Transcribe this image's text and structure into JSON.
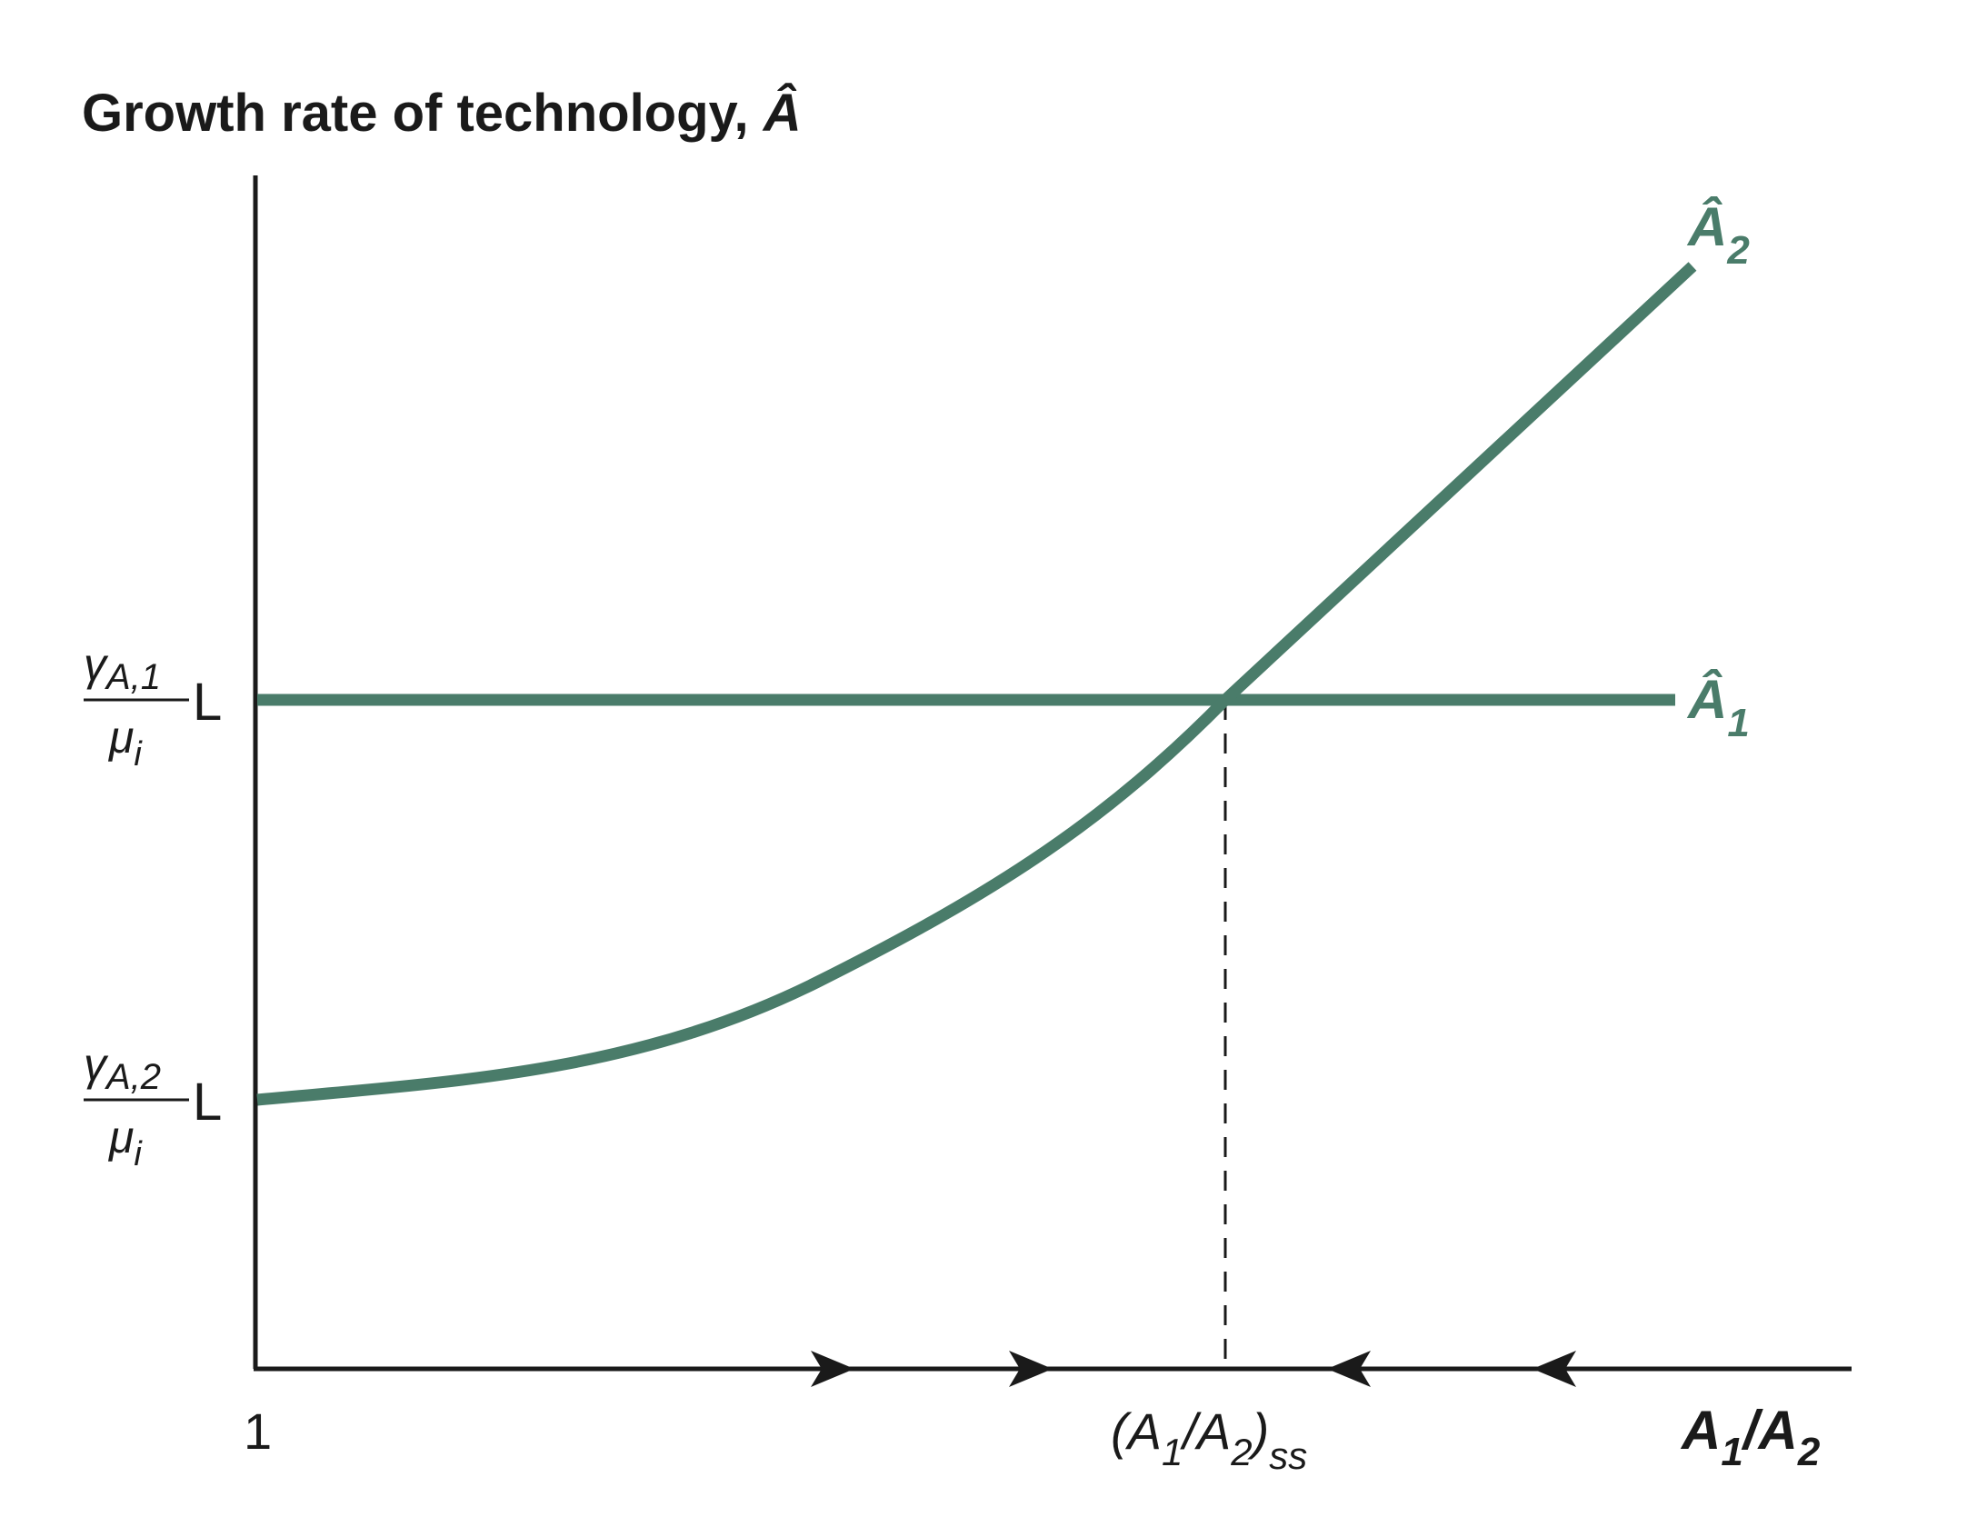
{
  "chart_data": {
    "type": "line",
    "title": "Growth rate of technology, Â",
    "title_parts": {
      "text": "Growth rate of technology, ",
      "symbol": "Â"
    },
    "xlabel": {
      "base1": "A",
      "sub1": "1",
      "slash": "/",
      "base2": "A",
      "sub2": "2"
    },
    "grid": false,
    "x_ticks": {
      "origin": "1",
      "steady_state": {
        "open": "(A",
        "sub1": "1",
        "slash": "/A",
        "sub2": "2",
        "close": ")",
        "sub_ss": "ss"
      }
    },
    "y_ticks": [
      {
        "gamma": "γ",
        "subscript": "A,1",
        "denominator": "μ",
        "den_sub": "i",
        "suffix": "L",
        "value": 1.0
      },
      {
        "gamma": "γ",
        "subscript": "A,2",
        "denominator": "μ",
        "den_sub": "i",
        "suffix": "L",
        "value": 0.0
      }
    ],
    "series": [
      {
        "name_base": "Â",
        "name_sub": "1",
        "shape": "horizontal",
        "y": 1.0
      },
      {
        "name_base": "Â",
        "name_sub": "2",
        "shape": "increasing, convex then linear",
        "y_start": 0.0,
        "y_end": 2.08
      }
    ],
    "intersection": {
      "label": "steady state",
      "x_fraction": 0.61
    },
    "arrows": {
      "left_of_ss": "right",
      "right_of_ss": "left"
    },
    "colors": {
      "curve": "#4a7c6a",
      "axis": "#1a1a1a"
    }
  }
}
